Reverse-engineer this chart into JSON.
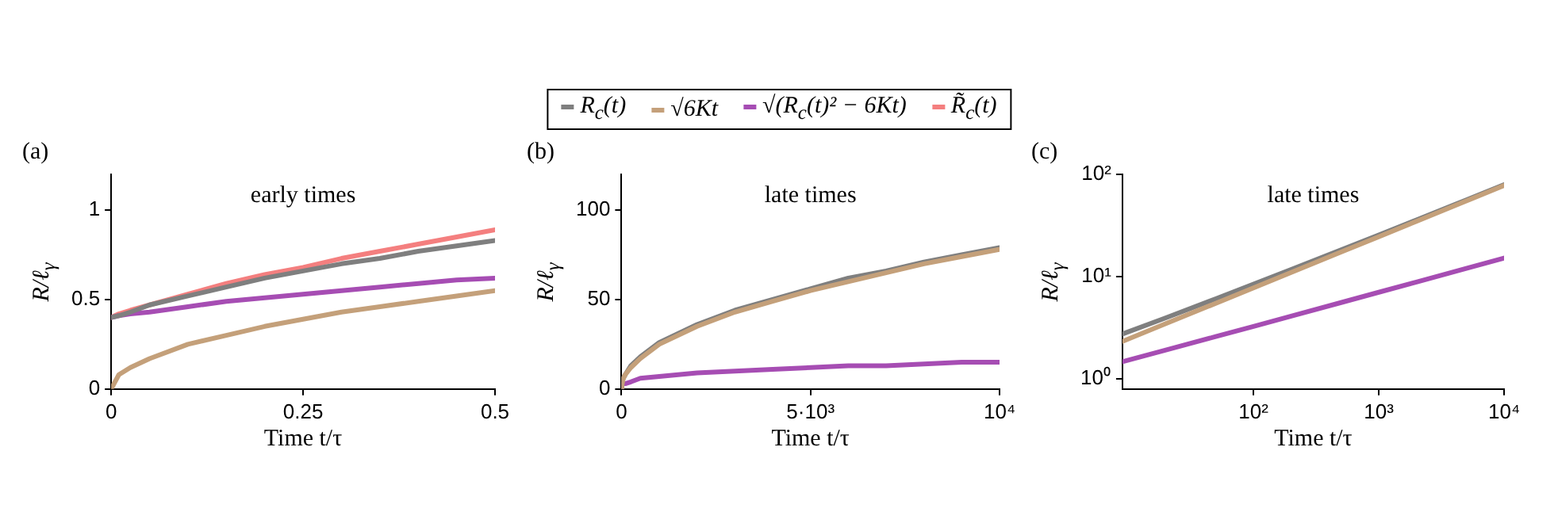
{
  "chart_data": [
    {
      "type": "line",
      "title": "early times",
      "xlabel": "Time t/τ",
      "ylabel": "R/ℓ$_{γ}$",
      "annotations": [
        "(a)"
      ],
      "legend": "top",
      "x": [
        0,
        0.01,
        0.025,
        0.05,
        0.1,
        0.15,
        0.2,
        0.25,
        0.3,
        0.35,
        0.4,
        0.45,
        0.5
      ],
      "xlim": [
        0,
        0.5
      ],
      "xticks": [
        0,
        0.25,
        0.5
      ],
      "ylim": [
        0,
        1.2
      ],
      "yticks": [
        0,
        0.5,
        1
      ],
      "series": [
        {
          "name": "R$_{c}$(t)",
          "color": "#7f7f7f",
          "values": [
            0.4,
            0.41,
            0.43,
            0.47,
            0.52,
            0.57,
            0.62,
            0.66,
            0.7,
            0.73,
            0.77,
            0.8,
            0.83
          ]
        },
        {
          "name": "√6Kt",
          "color": "#c4a07a",
          "values": [
            0,
            0.08,
            0.12,
            0.17,
            0.25,
            0.3,
            0.35,
            0.39,
            0.43,
            0.46,
            0.49,
            0.52,
            0.55
          ]
        },
        {
          "name": "√(R$_{c}$(t)² − 6Kt)",
          "color": "#a64db3",
          "values": [
            0.4,
            0.41,
            0.42,
            0.43,
            0.46,
            0.49,
            0.51,
            0.53,
            0.55,
            0.57,
            0.59,
            0.61,
            0.62
          ]
        },
        {
          "name": "R̃$_{c}$(t)",
          "color": "#f47f7f",
          "values": [
            0.4,
            0.42,
            0.44,
            0.47,
            0.53,
            0.59,
            0.64,
            0.68,
            0.73,
            0.77,
            0.81,
            0.85,
            0.89
          ]
        }
      ]
    },
    {
      "type": "line",
      "title": "late times",
      "xlabel": "Time t/τ",
      "ylabel": "R/ℓ$_{γ}$",
      "annotations": [
        "(b)"
      ],
      "x": [
        0,
        10,
        50,
        100,
        250,
        500,
        1000,
        2000,
        3000,
        4000,
        5000,
        6000,
        7000,
        8000,
        9000,
        10000
      ],
      "xlim": [
        0,
        10000
      ],
      "xticks": [
        0,
        {
          "value": 5000,
          "label": "5·10³"
        },
        {
          "value": 10000,
          "label": "10⁴"
        }
      ],
      "ylim": [
        0,
        120
      ],
      "yticks": [
        0,
        50,
        100
      ],
      "series": [
        {
          "color": "#c4a07a",
          "values": [
            0,
            2,
            6,
            8,
            12,
            17,
            25,
            35,
            43,
            49,
            55,
            60,
            65,
            70,
            74,
            78
          ]
        },
        {
          "color": "#7f7f7f",
          "values": [
            0,
            3,
            6,
            8,
            13,
            18,
            26,
            36,
            44,
            50,
            56,
            62,
            66,
            71,
            75,
            79
          ]
        },
        {
          "color": "#a64db3",
          "values": [
            0,
            2,
            3,
            3,
            4,
            6,
            7,
            9,
            10,
            11,
            12,
            13,
            13,
            14,
            15,
            15
          ]
        }
      ]
    },
    {
      "type": "line",
      "title": "late times",
      "xlabel": "Time t/τ",
      "ylabel": "R/ℓ$_{γ}$",
      "annotations": [
        "(c)"
      ],
      "log": "xy",
      "x": [
        9,
        20,
        50,
        100,
        200,
        500,
        1000,
        2000,
        5000,
        10000
      ],
      "xlim": [
        9,
        10000
      ],
      "xticks": [
        {
          "value": 100,
          "label": "10²"
        },
        {
          "value": 1000,
          "label": "10³"
        },
        {
          "value": 10000,
          "label": "10⁴"
        }
      ],
      "ylim": [
        0.8,
        100
      ],
      "yticks": [
        {
          "value": 1,
          "label": "10⁰"
        },
        {
          "value": 10,
          "label": "10¹"
        },
        {
          "value": 100,
          "label": "10²"
        }
      ],
      "series": [
        {
          "color": "#c4a07a",
          "values": [
            2.33,
            3.48,
            5.5,
            7.78,
            11,
            17.4,
            24.6,
            34.8,
            55,
            77.8
          ]
        },
        {
          "color": "#7f7f7f",
          "values": [
            2.76,
            3.97,
            6.08,
            8.44,
            11.75,
            18.3,
            25.6,
            35.9,
            56.3,
            79.3
          ]
        },
        {
          "color": "#a64db3",
          "values": [
            1.48,
            1.92,
            2.6,
            3.27,
            4.12,
            5.59,
            7.05,
            8.88,
            12.05,
            15.2
          ]
        }
      ]
    }
  ]
}
